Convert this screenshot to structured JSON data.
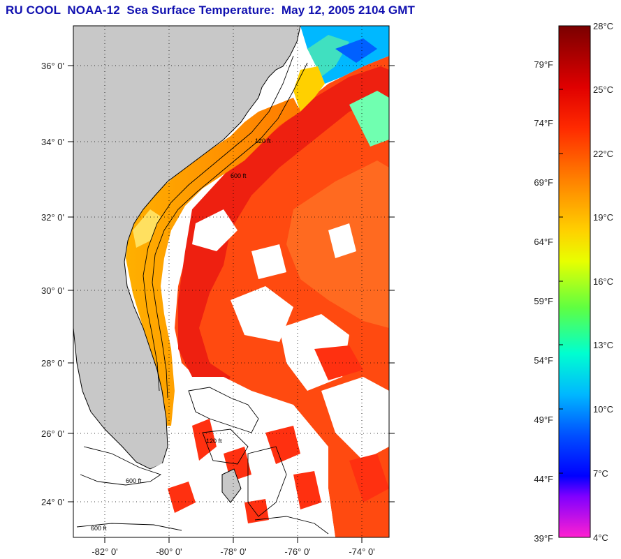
{
  "title": "RU COOL  NOAA-12  Sea Surface Temperature:  May 12, 2005 2104 GMT",
  "map": {
    "latitude_labels": [
      "36° 0'",
      "34° 0'",
      "32° 0'",
      "30° 0'",
      "28° 0'",
      "26° 0'",
      "24° 0'"
    ],
    "longitude_labels": [
      "-82° 0'",
      "-80° 0'",
      "-78° 0'",
      "-76° 0'",
      "-74° 0'"
    ],
    "land_color": "#c8c8c8",
    "cloud_color": "#ffffff",
    "isobath_labels": [
      "120 ft",
      "600 ft"
    ]
  },
  "colorbar": {
    "fahrenheit_labels": [
      "79°F",
      "74°F",
      "69°F",
      "64°F",
      "59°F",
      "54°F",
      "49°F",
      "44°F",
      "39°F"
    ],
    "celsius_labels": [
      "28°C",
      "25°C",
      "22°C",
      "19°C",
      "16°C",
      "13°C",
      "10°C",
      "7°C",
      "4°C"
    ],
    "celsius_range": [
      4,
      28
    ]
  }
}
